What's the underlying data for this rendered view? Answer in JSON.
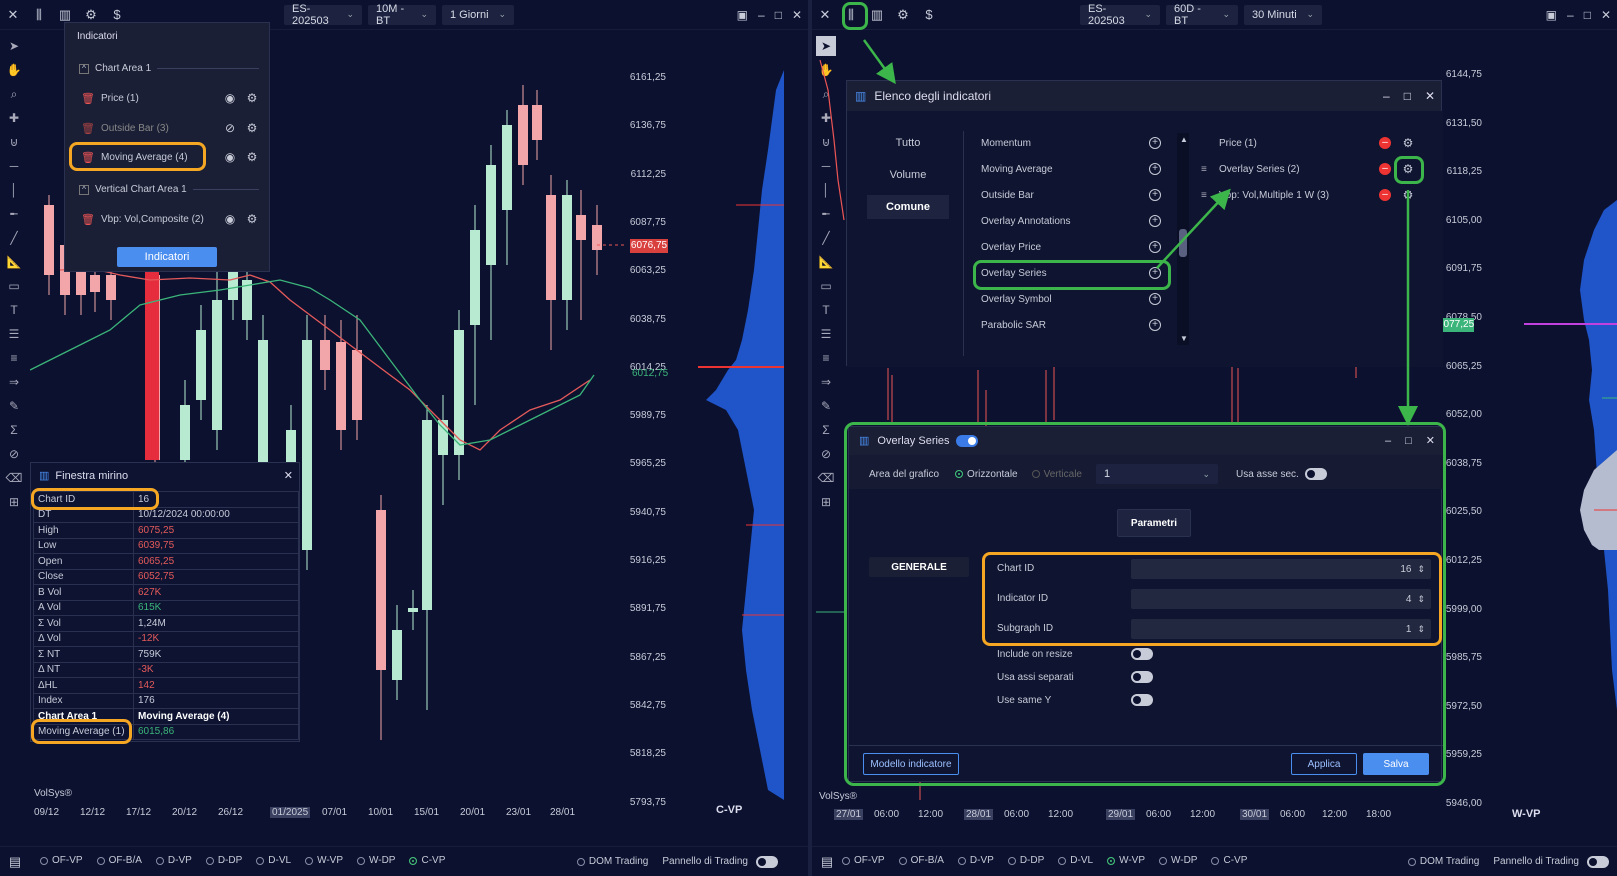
{
  "left": {
    "toolbar": {
      "symbol": "ES-202503",
      "timeframe": "10M - BT",
      "period": "1 Giorni"
    },
    "price_labels": [
      "6161,25",
      "6136,75",
      "6112,25",
      "6087,75",
      "6063,25",
      "6038,75",
      "6014,25",
      "5989,75",
      "5965,25",
      "5940,75",
      "5916,25",
      "5891,75",
      "5867,25",
      "5842,75",
      "5818,25",
      "5793,75"
    ],
    "current_price": "6076,75",
    "ma_price": "6012,75",
    "x_labels": [
      "09/12",
      "12/12",
      "17/12",
      "20/12",
      "26/12",
      "01/2025",
      "07/01",
      "10/01",
      "15/01",
      "20/01",
      "23/01",
      "28/01"
    ],
    "profile_label": "C-VP",
    "brand": "VolSys®",
    "indicators_panel": {
      "title": "Indicatori",
      "area1": "Chart Area 1",
      "items": [
        "Price (1)",
        "Outside Bar (3)",
        "Moving Average (4)"
      ],
      "area2": "Vertical Chart Area 1",
      "vitem": "Vbp: Vol,Composite (2)",
      "button": "Indicatori"
    },
    "window": {
      "title": "Finestra mirino",
      "rows": [
        {
          "k": "Chart ID",
          "v": "16"
        },
        {
          "k": "DT",
          "v": "10/12/2024 00:00:00"
        },
        {
          "k": "High",
          "v": "6075,25"
        },
        {
          "k": "Low",
          "v": "6039,75"
        },
        {
          "k": "Open",
          "v": "6065,25"
        },
        {
          "k": "Close",
          "v": "6052,75"
        },
        {
          "k": "B Vol",
          "v": "627K"
        },
        {
          "k": "A Vol",
          "v": "615K"
        },
        {
          "k": "Σ Vol",
          "v": "1,24M"
        },
        {
          "k": "Δ Vol",
          "v": "-12K"
        },
        {
          "k": "Σ NT",
          "v": "759K"
        },
        {
          "k": "Δ NT",
          "v": "-3K"
        },
        {
          "k": "ΔHL",
          "v": "142"
        },
        {
          "k": "Index",
          "v": "176"
        },
        {
          "k": "Chart Area 1",
          "v": "Moving Average (4)"
        },
        {
          "k": "Moving Average (1)",
          "v": "6015,86"
        }
      ]
    },
    "bottom": {
      "radios": [
        "OF-VP",
        "OF-B/A",
        "D-VP",
        "D-DP",
        "D-VL",
        "W-VP",
        "W-DP",
        "C-VP"
      ],
      "dom": "DOM Trading",
      "pannello": "Pannello di Trading"
    }
  },
  "right": {
    "toolbar": {
      "symbol": "ES-202503",
      "timeframe": "60D - BT",
      "period": "30 Minuti"
    },
    "price_labels": [
      "6144,75",
      "6131,50",
      "6118,25",
      "6105,00",
      "6091,75",
      "6078,50",
      "6065,25",
      "6052,00",
      "6038,75",
      "6025,50",
      "6012,25",
      "5999,00",
      "5985,75",
      "5972,50",
      "5959,25",
      "5946,00"
    ],
    "current_price": "6077,25",
    "x_labels": [
      "27/01",
      "06:00",
      "12:00",
      "28/01",
      "06:00",
      "12:00",
      "29/01",
      "06:00",
      "12:00",
      "30/01",
      "06:00",
      "12:00",
      "18:00"
    ],
    "profile_label": "W-VP",
    "brand": "VolSys®",
    "list_dialog": {
      "title": "Elenco degli indicatori",
      "categories": [
        "Tutto",
        "Volume",
        "Comune"
      ],
      "available": [
        "Momentum",
        "Moving Average",
        "Outside Bar",
        "Overlay Annotations",
        "Overlay Price",
        "Overlay Series",
        "Overlay Symbol",
        "Parabolic SAR"
      ],
      "active": [
        "Price (1)",
        "Overlay Series (2)",
        "Vbp: Vol,Multiple 1 W (3)"
      ]
    },
    "series_dialog": {
      "title": "Overlay Series",
      "area_label": "Area del grafico",
      "orizz": "Orizzontale",
      "vert": "Verticale",
      "select": "1",
      "usa_asse": "Usa asse sec.",
      "tab": "Parametri",
      "section": "GENERALE",
      "fields": [
        {
          "label": "Chart ID",
          "value": "16"
        },
        {
          "label": "Indicator ID",
          "value": "4"
        },
        {
          "label": "Subgraph ID",
          "value": "1"
        }
      ],
      "toggles": [
        "Include on resize",
        "Usa assi separati",
        "Use same Y"
      ],
      "modello": "Modello indicatore",
      "applica": "Applica",
      "salva": "Salva"
    },
    "bottom": {
      "radios": [
        "OF-VP",
        "OF-B/A",
        "D-VP",
        "D-DP",
        "D-VL",
        "W-VP",
        "W-DP",
        "C-VP"
      ],
      "dom": "DOM Trading",
      "pannello": "Pannello di Trading"
    }
  }
}
